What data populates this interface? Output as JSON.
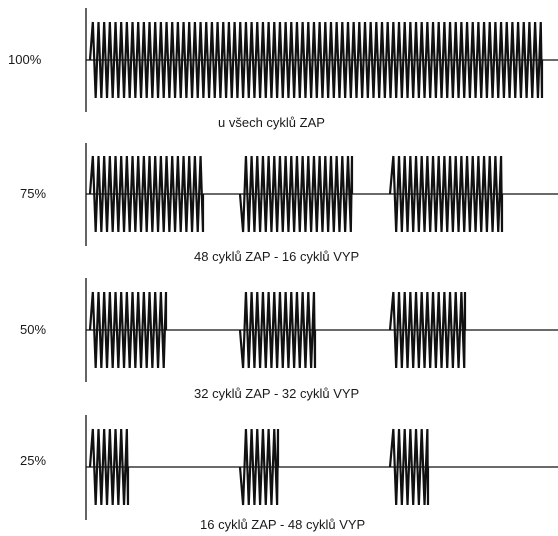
{
  "diagram": {
    "panels": [
      {
        "level": "100%",
        "caption": "u všech cyklů ZAP"
      },
      {
        "level": "75%",
        "caption": "48 cyklů ZAP - 16 cyklů VYP"
      },
      {
        "level": "50%",
        "caption": "32 cyklů ZAP - 32 cyklů VYP"
      },
      {
        "level": "25%",
        "caption": "16 cyklů ZAP - 48 cyklů VYP"
      }
    ]
  }
}
